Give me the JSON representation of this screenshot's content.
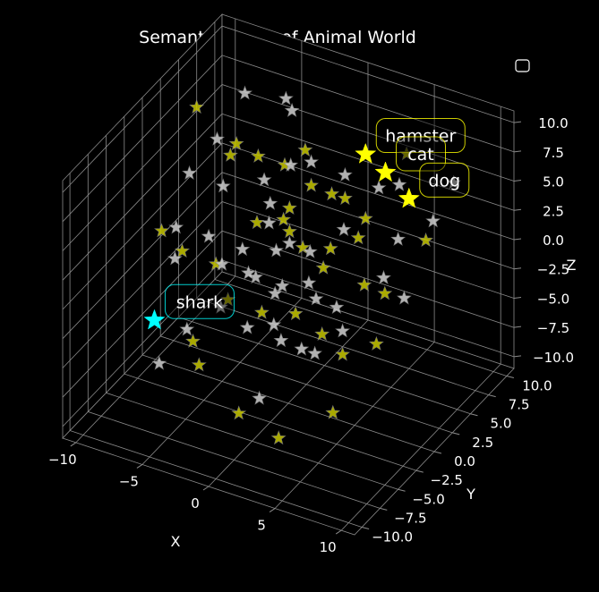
{
  "chart_data": {
    "type": "scatter",
    "projection": "3d",
    "title": "Semantic Space of Animal World",
    "xlabel": "X",
    "ylabel": "Y",
    "zlabel": "Z",
    "xlim": [
      -11,
      11
    ],
    "ylim": [
      -11,
      11
    ],
    "zlim": [
      -11,
      11
    ],
    "xticks": [
      -10,
      -5,
      0,
      5,
      10
    ],
    "yticks": [
      -10,
      -7.5,
      -5,
      -2.5,
      0,
      2.5,
      5,
      7.5,
      10
    ],
    "zticks": [
      -10,
      -7.5,
      -5,
      -2.5,
      0,
      2.5,
      5,
      7.5,
      10
    ],
    "x_tick_labels": [
      "−10",
      "−5",
      "0",
      "5",
      "10"
    ],
    "y_tick_labels": [
      "−10.0",
      "−7.5",
      "−5.0",
      "−2.5",
      "0.0",
      "2.5",
      "5.0",
      "7.5",
      "10.0"
    ],
    "z_tick_labels": [
      "−10.0",
      "−7.5",
      "−5.0",
      "−2.5",
      "0.0",
      "2.5",
      "5.0",
      "7.5",
      "10.0"
    ],
    "grid": true,
    "legend": "top-right (empty)",
    "marker": "star",
    "colors": {
      "background": "#000000",
      "text": "#ffffff",
      "grid": "#8a8a8a",
      "yellow_points": "#c8c800",
      "white_points": "#d0d0d0",
      "highlight_land": "#ffff00",
      "highlight_sea": "#00ffff"
    },
    "highlighted": [
      {
        "label": "hamster",
        "x": 2,
        "y": 7,
        "z": 6.5,
        "color": "#ffff00"
      },
      {
        "label": "cat",
        "x": 3.5,
        "y": 7,
        "z": 5.5,
        "color": "#ffff00"
      },
      {
        "label": "dog",
        "x": 5,
        "y": 7.5,
        "z": 3.5,
        "color": "#ffff00"
      },
      {
        "label": "shark",
        "x": -9,
        "y": -2,
        "z": -6,
        "color": "#00ffff"
      }
    ],
    "series": [
      {
        "color": "#c8c800",
        "points": [
          [
            -8,
            2,
            10
          ],
          [
            -5,
            2,
            8
          ],
          [
            -6,
            3,
            6
          ],
          [
            -5,
            5,
            5
          ],
          [
            -3,
            5,
            5
          ],
          [
            -2,
            6,
            6
          ],
          [
            -1,
            5,
            4
          ],
          [
            0,
            6,
            3
          ],
          [
            1,
            6,
            3
          ],
          [
            2,
            7,
            1
          ],
          [
            -2,
            3,
            2
          ],
          [
            -4,
            3,
            1
          ],
          [
            -1,
            2,
            2
          ],
          [
            0,
            2,
            1
          ],
          [
            1,
            3,
            -1
          ],
          [
            3,
            5,
            -3
          ],
          [
            4,
            6,
            -4
          ],
          [
            5,
            3,
            -6
          ],
          [
            -9,
            -1,
            1
          ],
          [
            -8,
            0,
            -1
          ],
          [
            -6,
            1,
            -2
          ],
          [
            -4,
            -1,
            -3
          ],
          [
            -2,
            0,
            -4
          ],
          [
            0,
            1,
            -4
          ],
          [
            2,
            1,
            -5
          ],
          [
            3,
            2,
            -7
          ],
          [
            -5,
            -4,
            -5
          ],
          [
            -4,
            -5,
            -6
          ],
          [
            -1,
            -5,
            -9
          ],
          [
            2,
            -5,
            -10
          ],
          [
            5,
            -3,
            -8
          ],
          [
            -1,
            2,
            4
          ],
          [
            1,
            4,
            0
          ],
          [
            2,
            6,
            0
          ],
          [
            6,
            8,
            0
          ],
          [
            4,
            9,
            6
          ]
        ]
      },
      {
        "color": "#d0d0d0",
        "points": [
          [
            -6,
            5,
            10
          ],
          [
            -3,
            6,
            9
          ],
          [
            -4,
            7,
            9
          ],
          [
            -8,
            1,
            5
          ],
          [
            -6,
            2,
            4
          ],
          [
            -4,
            4,
            4
          ],
          [
            -2,
            4,
            6
          ],
          [
            -1,
            5,
            6
          ],
          [
            1,
            6,
            5
          ],
          [
            3,
            7,
            4
          ],
          [
            -9,
            1,
            0
          ],
          [
            -8,
            -1,
            -1
          ],
          [
            -6,
            0,
            1
          ],
          [
            -4,
            1,
            0
          ],
          [
            -2,
            2,
            0
          ],
          [
            -1,
            2,
            1
          ],
          [
            0,
            3,
            0
          ],
          [
            2,
            4,
            2
          ],
          [
            -3,
            1,
            -2
          ],
          [
            -1,
            1,
            -2
          ],
          [
            1,
            2,
            -3
          ],
          [
            2,
            3,
            -4
          ],
          [
            3,
            2,
            -5
          ],
          [
            -4,
            -2,
            -3
          ],
          [
            -2,
            -2,
            -4
          ],
          [
            0,
            -1,
            -5
          ],
          [
            1,
            0,
            -6
          ],
          [
            2,
            0,
            -6
          ],
          [
            -6,
            -3,
            -5
          ],
          [
            0,
            -4,
            -8
          ],
          [
            -7,
            -5,
            -7
          ],
          [
            5,
            4,
            -1
          ],
          [
            6,
            9,
            1
          ],
          [
            7,
            10,
            4
          ],
          [
            4,
            8,
            4
          ],
          [
            5,
            6,
            1
          ],
          [
            -5,
            0,
            -1
          ],
          [
            -3,
            0,
            -1
          ],
          [
            -1,
            0,
            -2
          ],
          [
            1,
            1,
            -1
          ],
          [
            0,
            -2,
            -3
          ],
          [
            6,
            5,
            -3
          ],
          [
            -3,
            3,
            3
          ],
          [
            -2,
            1,
            3
          ],
          [
            -7,
            3,
            7
          ]
        ]
      }
    ]
  },
  "legend_box": ""
}
